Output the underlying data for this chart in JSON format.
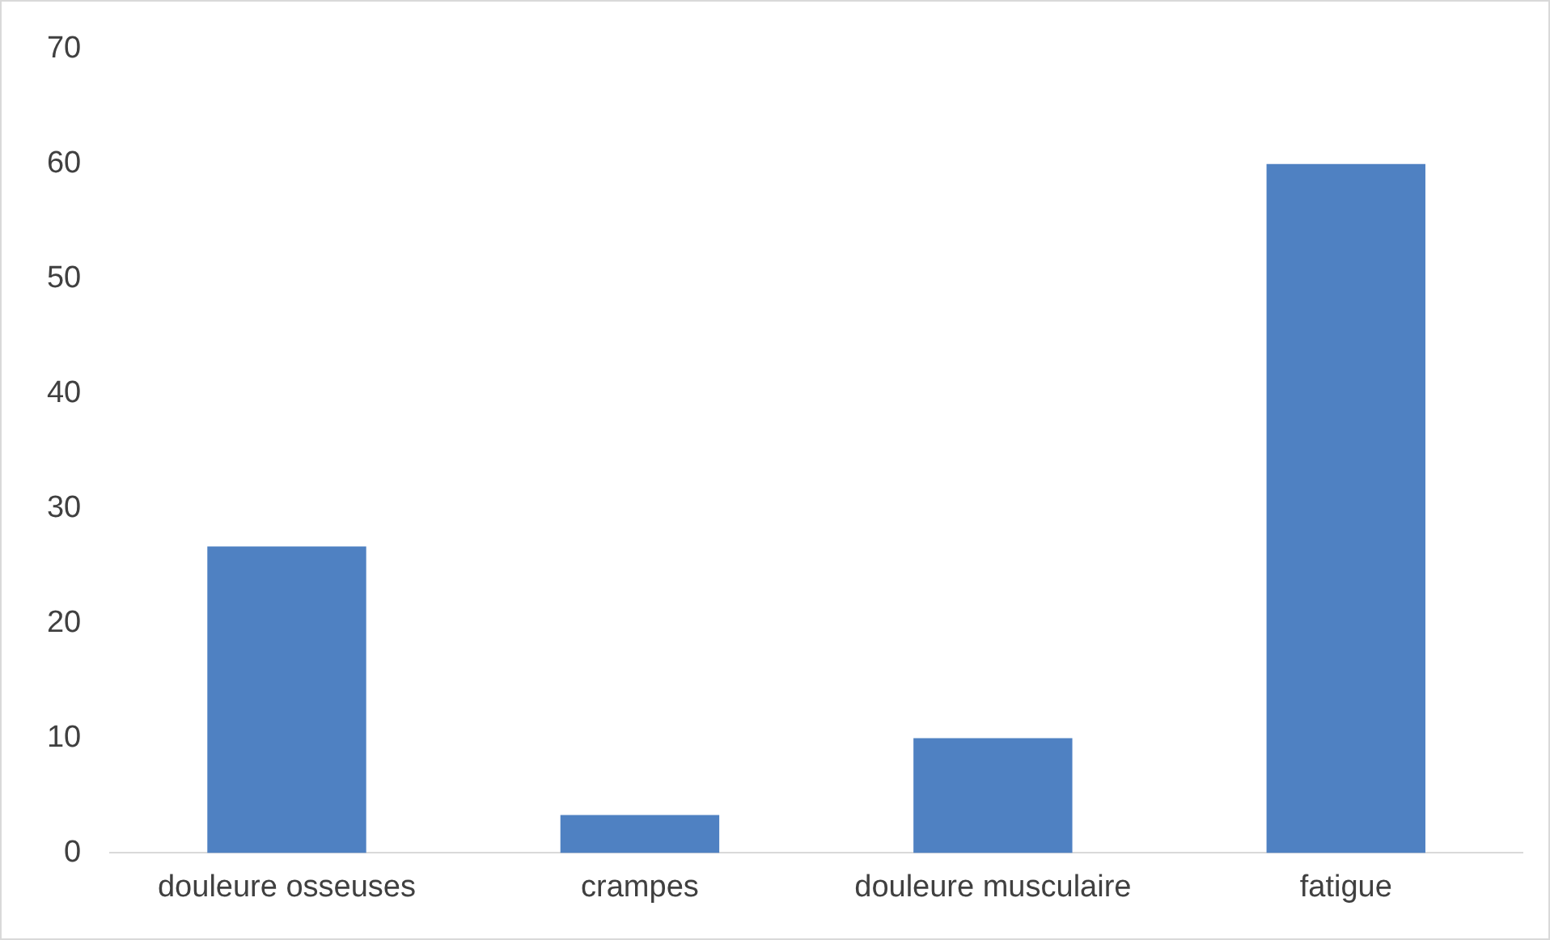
{
  "chart_data": {
    "type": "bar",
    "categories": [
      "douleure osseuses",
      "crampes",
      "douleure musculaire",
      "fatigue"
    ],
    "values": [
      26.7,
      3.3,
      10,
      60
    ],
    "color": "#4f81c2",
    "ylim": [
      0,
      70
    ],
    "yticks": [
      0,
      10,
      20,
      30,
      40,
      50,
      60,
      70
    ],
    "grid": false
  }
}
